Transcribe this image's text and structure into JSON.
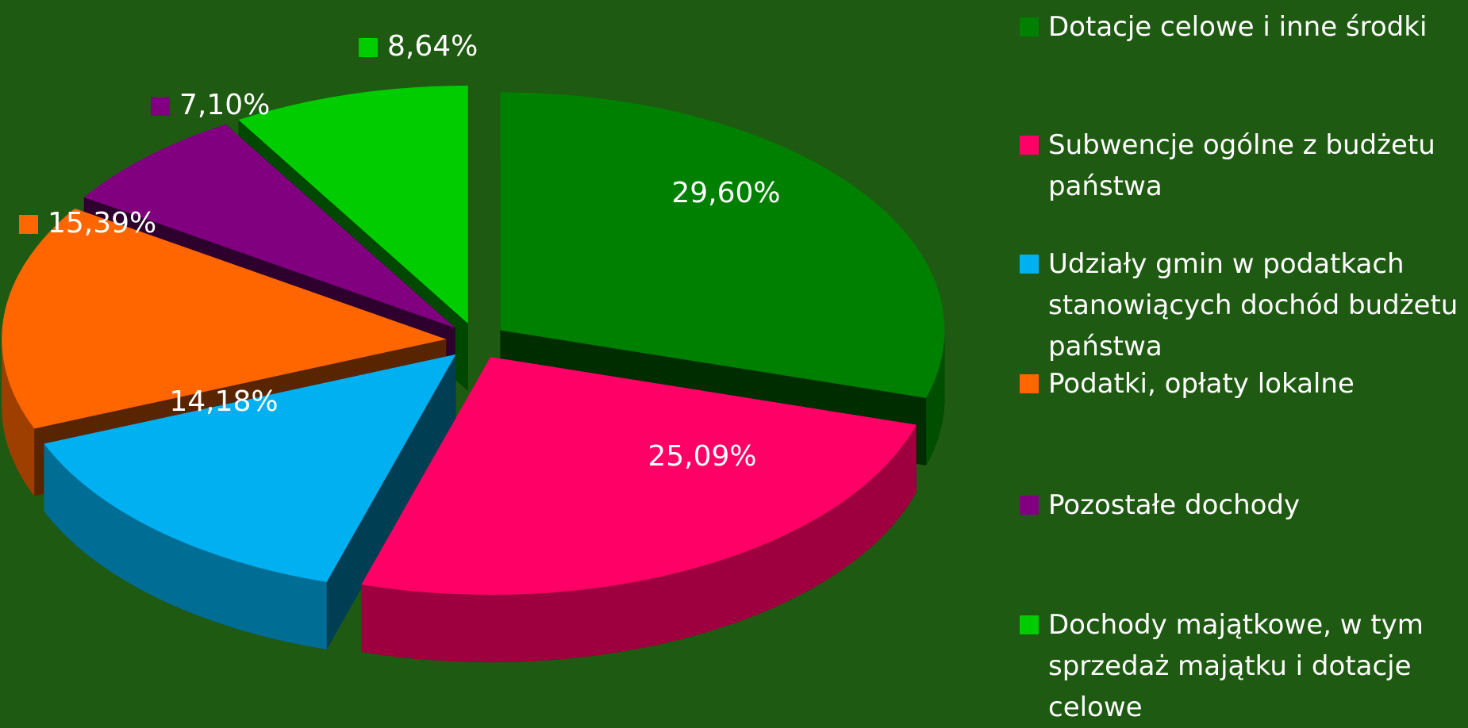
{
  "chart_data": {
    "type": "pie",
    "categories": [
      "Dotacje celowe i inne środki",
      "Subwencje ogólne z budżetu państwa",
      "Udziały gmin w podatkach stanowiących dochód budżetu państwa",
      "Podatki, opłaty lokalne",
      "Pozostałe dochody",
      "Dochody majątkowe, w tym sprzedaż majątku i dotacje celowe"
    ],
    "values": [
      29.6,
      25.09,
      14.18,
      15.39,
      7.1,
      8.64
    ],
    "value_labels": [
      "29,60%",
      "25,09%",
      "14,18%",
      "15,39%",
      "7,10%",
      "8,64%"
    ],
    "colors": [
      "#008000",
      "#ff0066",
      "#00b0f0",
      "#ff6600",
      "#800080",
      "#00cc00"
    ],
    "legend": "right"
  }
}
